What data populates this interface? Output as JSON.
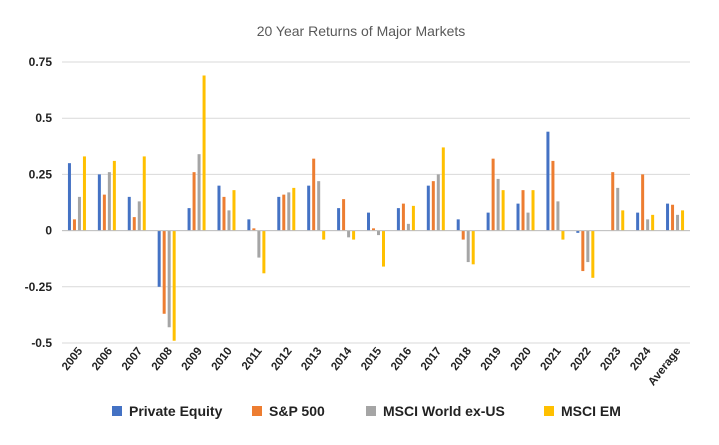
{
  "chart_data": {
    "type": "bar",
    "title": "20 Year Returns of Major Markets",
    "xlabel": "",
    "ylabel": "",
    "ylim": [
      -0.5,
      0.75
    ],
    "yticks": [
      {
        "value": 0.75,
        "label": "0.75"
      },
      {
        "value": 0.5,
        "label": "0.5"
      },
      {
        "value": 0.25,
        "label": "0.25"
      },
      {
        "value": 0,
        "label": "0"
      },
      {
        "value": -0.25,
        "label": "-0.25"
      },
      {
        "value": -0.5,
        "label": "-0.5"
      }
    ],
    "grid": true,
    "legend_position": "bottom",
    "categories": [
      "2005",
      "2006",
      "2007",
      "2008",
      "2009",
      "2010",
      "2011",
      "2012",
      "2013",
      "2014",
      "2015",
      "2016",
      "2017",
      "2018",
      "2019",
      "2020",
      "2021",
      "2022",
      "2023",
      "2024",
      "Average"
    ],
    "series": [
      {
        "name": "Private Equity",
        "color": "#4472C4",
        "values": [
          0.3,
          0.25,
          0.15,
          -0.25,
          0.1,
          0.2,
          0.05,
          0.15,
          0.2,
          0.1,
          0.08,
          0.1,
          0.2,
          0.05,
          0.08,
          0.12,
          0.44,
          -0.01,
          0.0,
          0.08,
          0.12
        ]
      },
      {
        "name": "S&P 500",
        "color": "#ED7D31",
        "values": [
          0.05,
          0.16,
          0.06,
          -0.37,
          0.26,
          0.15,
          0.01,
          0.16,
          0.32,
          0.14,
          0.01,
          0.12,
          0.22,
          -0.04,
          0.32,
          0.18,
          0.31,
          -0.18,
          0.26,
          0.25,
          0.115
        ]
      },
      {
        "name": "MSCI World ex-US",
        "color": "#A5A5A5",
        "values": [
          0.15,
          0.26,
          0.13,
          -0.43,
          0.34,
          0.09,
          -0.12,
          0.17,
          0.22,
          -0.03,
          -0.02,
          0.03,
          0.25,
          -0.14,
          0.23,
          0.08,
          0.13,
          -0.14,
          0.19,
          0.05,
          0.07
        ]
      },
      {
        "name": "MSCI EM",
        "color": "#FFC000",
        "values": [
          0.33,
          0.31,
          0.33,
          -0.49,
          0.69,
          0.18,
          -0.19,
          0.19,
          -0.04,
          -0.04,
          -0.16,
          0.11,
          0.37,
          -0.15,
          0.18,
          0.18,
          -0.04,
          -0.21,
          0.09,
          0.07,
          0.09
        ]
      }
    ]
  }
}
